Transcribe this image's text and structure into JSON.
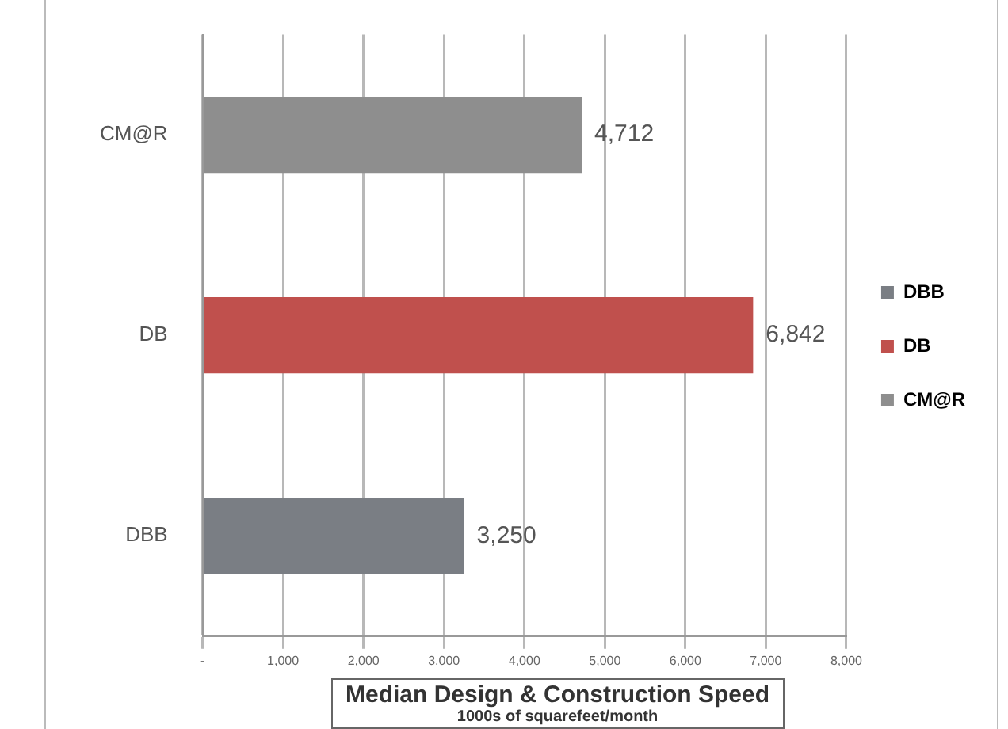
{
  "chart_data": {
    "type": "bar",
    "orientation": "horizontal",
    "xlabel": "Median Design & Construction Speed",
    "annotations": [
      "1000s of squarefeet/month"
    ],
    "categories": [
      "CM@R",
      "DB",
      "DBB"
    ],
    "series": [
      {
        "name": "DBB",
        "color": "#7a7e84",
        "values": [
          null,
          null,
          3250
        ],
        "value_labels": [
          null,
          null,
          "3,250"
        ]
      },
      {
        "name": "DB",
        "color": "#c0504d",
        "values": [
          null,
          6842,
          null
        ],
        "value_labels": [
          null,
          "6,842",
          null
        ]
      },
      {
        "name": "CM@R",
        "color": "#8e8e8e",
        "values": [
          4712,
          null,
          null
        ],
        "value_labels": [
          "4,712",
          null,
          null
        ]
      }
    ],
    "xlim": [
      0,
      8000
    ],
    "xticks": [
      {
        "value": 0,
        "label": "-"
      },
      {
        "value": 1000,
        "label": "1,000"
      },
      {
        "value": 2000,
        "label": "2,000"
      },
      {
        "value": 3000,
        "label": "3,000"
      },
      {
        "value": 4000,
        "label": "4,000"
      },
      {
        "value": 5000,
        "label": "5,000"
      },
      {
        "value": 6000,
        "label": "6,000"
      },
      {
        "value": 7000,
        "label": "7,000"
      },
      {
        "value": 8000,
        "label": "8,000"
      }
    ],
    "grid": "x",
    "legend": "right"
  }
}
